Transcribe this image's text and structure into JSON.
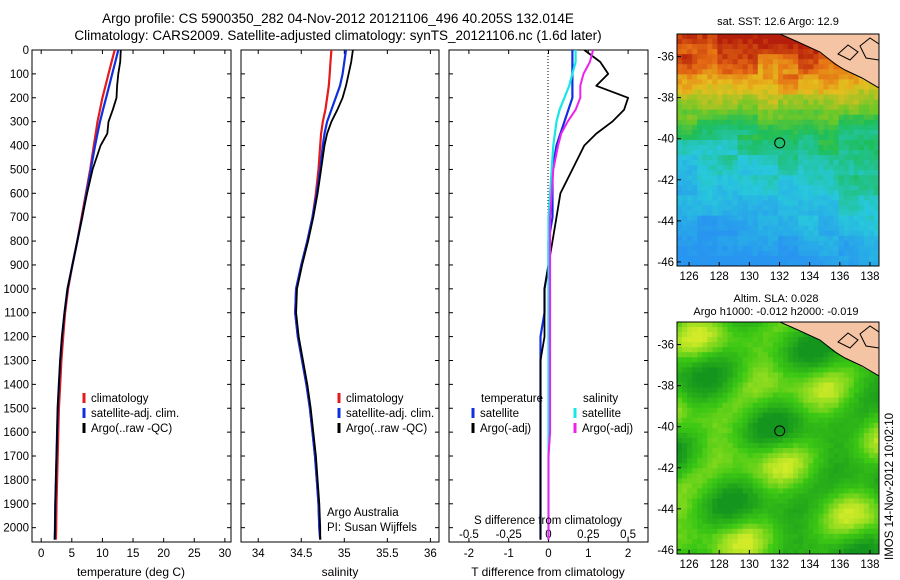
{
  "title": {
    "line1": "Argo profile: CS 5900350_282 04-Nov-2012 20121106_496 40.205S 132.014E",
    "line2": "Climatology: CARS2009. Satellite-adjusted climatology: synTS_20121106.nc (1.6d later)"
  },
  "side_stamp": "IMOS 14-Nov-2012 10:02:10",
  "colors": {
    "climatology": "#e41a1c",
    "satellite_clim": "#1030e0",
    "argo": "#000000",
    "sal_satellite": "#19e6e6",
    "sal_argo": "#ee22ee"
  },
  "depth_ticks": [
    0,
    100,
    200,
    300,
    400,
    500,
    600,
    700,
    800,
    900,
    1000,
    1100,
    1200,
    1300,
    1400,
    1500,
    1600,
    1700,
    1800,
    1900,
    2000
  ],
  "chart_data": [
    {
      "type": "line",
      "panel": "temperature",
      "xlabel": "temperature (deg C)",
      "ylabel": "",
      "xlim": [
        -1.5,
        31
      ],
      "ylim": [
        2060,
        0
      ],
      "xticks": [
        0,
        5,
        10,
        15,
        20,
        25,
        30
      ],
      "legend": [
        "climatology",
        "satellite-adj. clim.",
        "Argo(..raw -QC)"
      ],
      "legend_position": "lower-left",
      "depth": [
        0,
        50,
        100,
        150,
        200,
        250,
        300,
        350,
        400,
        500,
        600,
        700,
        800,
        900,
        1000,
        1100,
        1200,
        1300,
        1400,
        1500,
        1600,
        1700,
        1800,
        1900,
        2000,
        2050
      ],
      "series": [
        {
          "name": "climatology",
          "values": [
            12.0,
            11.5,
            11.0,
            10.5,
            10.0,
            9.6,
            9.2,
            8.9,
            8.6,
            8.0,
            7.3,
            6.6,
            5.9,
            5.1,
            4.4,
            3.9,
            3.6,
            3.3,
            3.1,
            2.9,
            2.8,
            2.7,
            2.6,
            2.5,
            2.45,
            2.4
          ]
        },
        {
          "name": "satellite-adj. clim.",
          "values": [
            12.6,
            12.1,
            11.6,
            11.1,
            10.6,
            10.1,
            9.6,
            9.2,
            8.8,
            8.1,
            7.4,
            6.7,
            5.9,
            5.1,
            4.3,
            3.8,
            3.4,
            3.1,
            2.9,
            2.7,
            2.6,
            2.5,
            2.4,
            2.3,
            2.25,
            2.2
          ]
        },
        {
          "name": "Argo(..raw -QC)",
          "values": [
            13.0,
            12.9,
            12.6,
            12.4,
            12.3,
            11.7,
            11.0,
            10.8,
            9.7,
            8.4,
            7.5,
            6.7,
            5.9,
            5.1,
            4.3,
            3.8,
            3.4,
            3.1,
            2.9,
            2.7,
            2.6,
            2.5,
            2.4,
            2.3,
            2.25,
            2.2
          ]
        }
      ]
    },
    {
      "type": "line",
      "panel": "salinity",
      "xlabel": "salinity",
      "ylabel": "",
      "xlim": [
        33.8,
        36.1
      ],
      "ylim": [
        2060,
        0
      ],
      "xticks": [
        34,
        34.5,
        35,
        35.5,
        36
      ],
      "xticklabels": [
        "34",
        "34.5",
        "35",
        "35.5",
        "36"
      ],
      "legend": [
        "climatology",
        "satellite-adj. clim.",
        "Argo(..raw -QC)"
      ],
      "legend_position": "lower-right",
      "annotation": [
        "Argo Australia",
        "PI: Susan Wijffels"
      ],
      "depth": [
        0,
        50,
        100,
        150,
        200,
        250,
        300,
        350,
        400,
        500,
        600,
        700,
        800,
        900,
        1000,
        1100,
        1200,
        1300,
        1400,
        1500,
        1600,
        1700,
        1800,
        1900,
        2000,
        2050
      ],
      "series": [
        {
          "name": "climatology",
          "values": [
            34.85,
            34.84,
            34.83,
            34.82,
            34.8,
            34.78,
            34.75,
            34.73,
            34.72,
            34.7,
            34.67,
            34.63,
            34.57,
            34.5,
            34.44,
            34.43,
            34.46,
            34.51,
            34.56,
            34.6,
            34.63,
            34.66,
            34.68,
            34.7,
            34.71,
            34.72
          ]
        },
        {
          "name": "satellite-adj. clim.",
          "values": [
            35.02,
            35.0,
            34.98,
            34.95,
            34.9,
            34.85,
            34.8,
            34.77,
            34.75,
            34.72,
            34.68,
            34.63,
            34.57,
            34.5,
            34.44,
            34.43,
            34.46,
            34.51,
            34.56,
            34.6,
            34.63,
            34.66,
            34.68,
            34.7,
            34.71,
            34.72
          ]
        },
        {
          "name": "Argo(..raw -QC)",
          "values": [
            35.1,
            35.08,
            35.05,
            35.02,
            34.98,
            34.92,
            34.85,
            34.8,
            34.77,
            34.73,
            34.69,
            34.64,
            34.58,
            34.51,
            34.45,
            34.44,
            34.47,
            34.52,
            34.57,
            34.61,
            34.64,
            34.67,
            34.69,
            34.71,
            34.72,
            34.72
          ]
        }
      ]
    },
    {
      "type": "line",
      "panel": "differences",
      "xlabel": "T difference from climatology",
      "xlabel_top": "S difference from climatology",
      "xlim": [
        -2.5,
        2.5
      ],
      "ylim": [
        2060,
        0
      ],
      "xticks_bottom": [
        -2,
        -1,
        0,
        1,
        2
      ],
      "xticks_top": [
        -0.5,
        -0.25,
        0,
        0.25,
        0.5
      ],
      "xticklabels_top": [
        "-0.5",
        "-0.25",
        "0",
        "0.25",
        "0.5"
      ],
      "legend_headers": [
        "temperature",
        "salinity"
      ],
      "legend": [
        "satellite",
        "Argo(-adj)",
        "satellite",
        "Argo(-adj)"
      ],
      "legend_position": "lower-center",
      "depth": [
        0,
        50,
        100,
        150,
        200,
        250,
        300,
        350,
        400,
        500,
        600,
        700,
        800,
        900,
        1000,
        1100,
        1200,
        1300,
        1400,
        1500,
        1600,
        1700,
        1800,
        1900,
        2000,
        2050
      ],
      "series": [
        {
          "name": "temperature satellite",
          "values": [
            0.6,
            0.6,
            0.6,
            0.6,
            0.6,
            0.5,
            0.4,
            0.3,
            0.2,
            0.1,
            0.1,
            0.1,
            0.0,
            0.0,
            -0.1,
            -0.1,
            -0.2,
            -0.2,
            -0.2,
            -0.2,
            -0.2,
            -0.2,
            -0.2,
            -0.2,
            -0.2,
            -0.2
          ]
        },
        {
          "name": "temperature Argo(-adj)",
          "values": [
            0.9,
            1.3,
            1.5,
            1.2,
            2.0,
            1.9,
            1.6,
            1.2,
            0.9,
            0.6,
            0.3,
            0.2,
            0.1,
            0.0,
            -0.1,
            -0.1,
            -0.1,
            -0.2,
            -0.2,
            -0.2,
            -0.2,
            -0.2,
            -0.2,
            -0.2,
            -0.2,
            -0.2
          ]
        },
        {
          "name": "salinity satellite",
          "values": [
            0.17,
            0.17,
            0.15,
            0.13,
            0.1,
            0.07,
            0.05,
            0.04,
            0.03,
            0.02,
            0.01,
            0.0,
            0.0,
            0.0,
            0.0,
            0.0,
            0.0,
            0.0,
            0.0,
            0.0,
            0.0,
            0.0,
            0.0,
            0.0,
            0.0,
            0.0
          ]
        },
        {
          "name": "salinity Argo(-adj)",
          "values": [
            0.28,
            0.26,
            0.22,
            0.2,
            0.2,
            0.17,
            0.12,
            0.08,
            0.06,
            0.03,
            0.02,
            0.01,
            0.01,
            0.01,
            0.01,
            0.01,
            0.01,
            0.01,
            0.01,
            0.01,
            0.01,
            0.0,
            0.0,
            0.0,
            0.0,
            0.0
          ]
        }
      ]
    },
    {
      "type": "heatmap",
      "panel": "sst-map",
      "title": "sat. SST: 12.6 Argo: 12.9",
      "xlim": [
        125.2,
        138.6
      ],
      "ylim": [
        -46.2,
        -34.9
      ],
      "xticks": [
        126,
        128,
        130,
        132,
        134,
        136,
        138
      ],
      "yticks": [
        -36,
        -38,
        -40,
        -42,
        -44,
        -46
      ],
      "marker": {
        "lon": 132.014,
        "lat": -40.205
      }
    },
    {
      "type": "heatmap",
      "panel": "sla-map",
      "title_lines": [
        "Altim. SLA: 0.028",
        "Argo h1000: -0.012 h2000: -0.019"
      ],
      "xlim": [
        125.2,
        138.6
      ],
      "ylim": [
        -46.2,
        -34.9
      ],
      "xticks": [
        126,
        128,
        130,
        132,
        134,
        136,
        138
      ],
      "yticks": [
        -36,
        -38,
        -40,
        -42,
        -44,
        -46
      ],
      "marker": {
        "lon": 132.014,
        "lat": -40.205
      }
    }
  ]
}
